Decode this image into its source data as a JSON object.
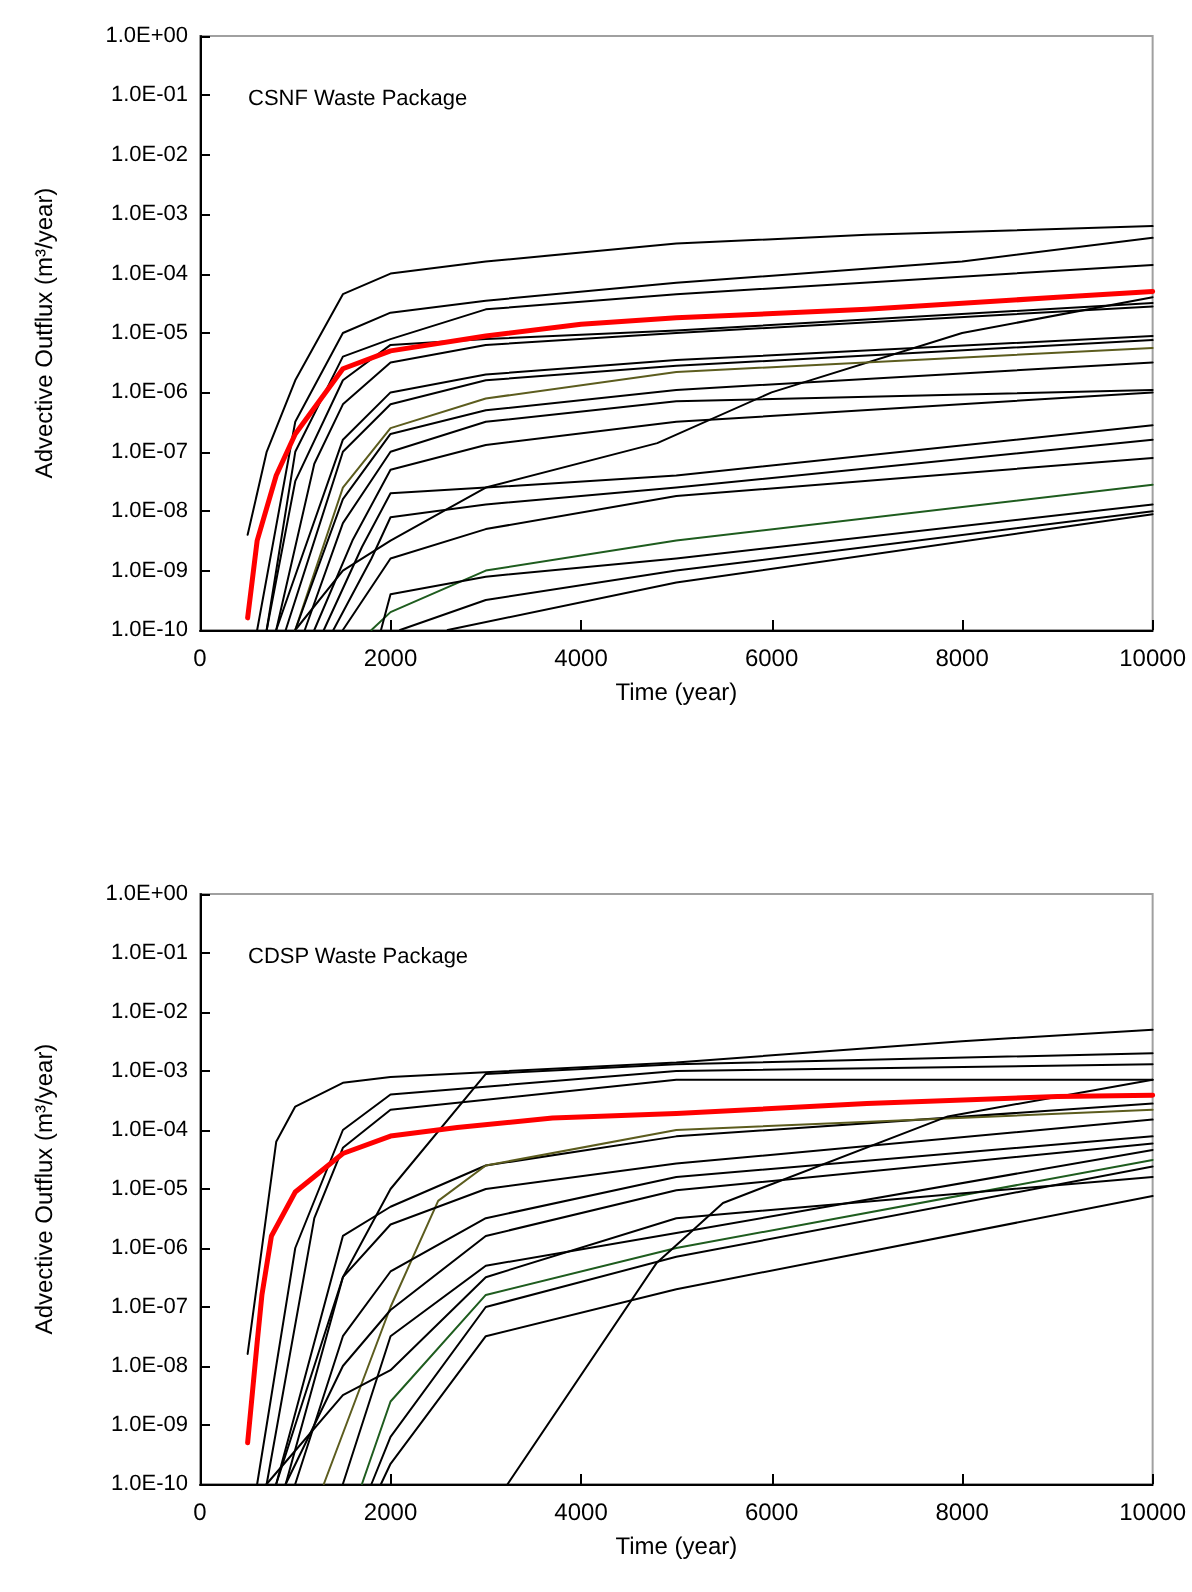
{
  "chart_data": [
    {
      "type": "line",
      "annotations": [
        "CSNF Waste Package"
      ],
      "xlabel": "Time (year)",
      "ylabel": "Advective Outflux (m³/year)",
      "log": "y",
      "marker": "none",
      "line_style": "solid",
      "grid": false,
      "xlim": [
        0,
        10000
      ],
      "xticks": [
        0,
        2000,
        4000,
        6000,
        8000,
        10000
      ],
      "ylim": [
        1e-10,
        1
      ],
      "yticks": [
        {
          "value": 1,
          "label": "1.0E+00"
        },
        {
          "value": 0.1,
          "label": "1.0E-01"
        },
        {
          "value": 0.01,
          "label": "1.0E-02"
        },
        {
          "value": 0.001,
          "label": "1.0E-03"
        },
        {
          "value": 0.0001,
          "label": "1.0E-04"
        },
        {
          "value": 1e-05,
          "label": "1.0E-05"
        },
        {
          "value": 1e-06,
          "label": "1.0E-06"
        },
        {
          "value": 1e-07,
          "label": "1.0E-07"
        },
        {
          "value": 1e-08,
          "label": "1.0E-08"
        },
        {
          "value": 1e-09,
          "label": "1.0E-09"
        },
        {
          "value": 1e-10,
          "label": "1.0E-10"
        }
      ],
      "series": [
        {
          "color": "#000000",
          "x": [
            500,
            700,
            1000,
            1500,
            2000,
            3000,
            5000,
            7000,
            10000
          ],
          "values": [
            4e-09,
            1e-07,
            1.6e-06,
            4.5e-05,
            0.0001,
            0.00016,
            0.00032,
            0.00045,
            0.00063
          ]
        },
        {
          "color": "#000000",
          "x": [
            600,
            1000,
            1500,
            2000,
            3000,
            5000,
            8000,
            10000
          ],
          "values": [
            1e-10,
            3.2e-07,
            1e-05,
            2.2e-05,
            3.5e-05,
            7e-05,
            0.00016,
            0.0004
          ]
        },
        {
          "color": "#000000",
          "x": [
            700,
            1000,
            1500,
            2000,
            3000,
            5000,
            10000
          ],
          "values": [
            1e-10,
            1e-07,
            4e-06,
            7.9e-06,
            2.5e-05,
            4.5e-05,
            0.00014
          ]
        },
        {
          "color": "#000000",
          "x": [
            700,
            1000,
            1500,
            2000,
            3000,
            5000,
            10000
          ],
          "values": [
            1e-10,
            3.2e-08,
            1.6e-06,
            6.3e-06,
            7.9e-06,
            1.1e-05,
            3.2e-05
          ]
        },
        {
          "color": "#000000",
          "x": [
            800,
            1200,
            1500,
            2000,
            3000,
            5000,
            10000
          ],
          "values": [
            1e-10,
            6.3e-08,
            6.3e-07,
            3.2e-06,
            6.3e-06,
            1e-05,
            2.8e-05
          ]
        },
        {
          "color": "#000000",
          "x": [
            1000,
            1500,
            2000,
            3000,
            4800,
            6000,
            8000,
            10000
          ],
          "values": [
            1e-10,
            1e-09,
            3.2e-09,
            2.5e-08,
            1.4e-07,
            1e-06,
            1e-05,
            4e-05
          ]
        },
        {
          "color": "#000000",
          "x": [
            800,
            1500,
            2000,
            3000,
            5000,
            10000
          ],
          "values": [
            1e-10,
            1.6e-07,
            1e-06,
            2e-06,
            3.5e-06,
            8.9e-06
          ]
        },
        {
          "color": "#000000",
          "x": [
            900,
            1500,
            2000,
            3000,
            5000,
            10000
          ],
          "values": [
            1e-10,
            1e-07,
            6.3e-07,
            1.6e-06,
            2.8e-06,
            7.6e-06
          ]
        },
        {
          "color": "#5c5c1e",
          "x": [
            1000,
            1500,
            2000,
            3000,
            5000,
            10000
          ],
          "values": [
            1e-10,
            2.5e-08,
            2.5e-07,
            7.9e-07,
            2.2e-06,
            5.6e-06
          ]
        },
        {
          "color": "#000000",
          "x": [
            1000,
            1500,
            2000,
            3000,
            5000,
            10000
          ],
          "values": [
            1e-10,
            1.6e-08,
            2e-07,
            5e-07,
            1.1e-06,
            3.2e-06
          ]
        },
        {
          "color": "#000000",
          "x": [
            1100,
            1500,
            2000,
            3000,
            5000,
            10000
          ],
          "values": [
            1e-10,
            6.3e-09,
            1e-07,
            3.2e-07,
            7.1e-07,
            1.1e-06
          ]
        },
        {
          "color": "#000000",
          "x": [
            1200,
            1600,
            2000,
            3000,
            5000,
            10000
          ],
          "values": [
            1e-10,
            3.2e-09,
            5e-08,
            1.3e-07,
            3.2e-07,
            1e-06
          ]
        },
        {
          "color": "#000000",
          "x": [
            1300,
            1700,
            2000,
            3000,
            5000,
            10000
          ],
          "values": [
            1e-10,
            2.5e-09,
            2e-08,
            2.5e-08,
            4e-08,
            2.8e-07
          ]
        },
        {
          "color": "#000000",
          "x": [
            1400,
            1800,
            2000,
            3000,
            5000,
            10000
          ],
          "values": [
            1e-10,
            1.6e-09,
            7.9e-09,
            1.3e-08,
            2.5e-08,
            1.6e-07
          ]
        },
        {
          "color": "#000000",
          "x": [
            1500,
            2000,
            3000,
            5000,
            10000
          ],
          "values": [
            1e-10,
            1.6e-09,
            5e-09,
            1.8e-08,
            7.9e-08
          ]
        },
        {
          "color": "#1e5c1e",
          "x": [
            1800,
            2000,
            3000,
            5000,
            10000
          ],
          "values": [
            1e-10,
            2e-10,
            1e-09,
            3.2e-09,
            2.8e-08
          ]
        },
        {
          "color": "#000000",
          "x": [
            1900,
            2000,
            3000,
            5000,
            10000
          ],
          "values": [
            1e-10,
            4e-10,
            7.9e-10,
            1.6e-09,
            1.3e-08
          ]
        },
        {
          "color": "#000000",
          "x": [
            2100,
            3000,
            5000,
            10000
          ],
          "values": [
            1e-10,
            3.2e-10,
            1e-09,
            1e-08
          ]
        },
        {
          "color": "#000000",
          "x": [
            2600,
            5000,
            10000
          ],
          "values": [
            1e-10,
            6.3e-10,
            8.9e-09
          ]
        },
        {
          "color": "#ff0000",
          "x": [
            500,
            600,
            800,
            1000,
            1500,
            2000,
            3000,
            4000,
            5000,
            7000,
            9000,
            10000
          ],
          "values": [
            1.6e-10,
            3.2e-09,
            4e-08,
            2e-07,
            2.5e-06,
            5e-06,
            8.9e-06,
            1.4e-05,
            1.8e-05,
            2.5e-05,
            4e-05,
            5e-05
          ]
        }
      ]
    },
    {
      "type": "line",
      "annotations": [
        "CDSP Waste Package"
      ],
      "xlabel": "Time (year)",
      "ylabel": "Advective Outflux (m³/year)",
      "log": "y",
      "marker": "none",
      "line_style": "solid",
      "grid": false,
      "xlim": [
        0,
        10000
      ],
      "xticks": [
        0,
        2000,
        4000,
        6000,
        8000,
        10000
      ],
      "ylim": [
        1e-10,
        1
      ],
      "yticks": [
        {
          "value": 1,
          "label": "1.0E+00"
        },
        {
          "value": 0.1,
          "label": "1.0E-01"
        },
        {
          "value": 0.01,
          "label": "1.0E-02"
        },
        {
          "value": 0.001,
          "label": "1.0E-03"
        },
        {
          "value": 0.0001,
          "label": "1.0E-04"
        },
        {
          "value": 1e-05,
          "label": "1.0E-05"
        },
        {
          "value": 1e-06,
          "label": "1.0E-06"
        },
        {
          "value": 1e-07,
          "label": "1.0E-07"
        },
        {
          "value": 1e-08,
          "label": "1.0E-08"
        },
        {
          "value": 1e-09,
          "label": "1.0E-09"
        },
        {
          "value": 1e-10,
          "label": "1.0E-10"
        }
      ],
      "series": [
        {
          "color": "#000000",
          "x": [
            500,
            800,
            1000,
            1500,
            2000,
            5000,
            8000,
            10000
          ],
          "values": [
            1.6e-08,
            6.3e-05,
            0.00025,
            0.00063,
            0.00079,
            0.0014,
            0.0032,
            0.005
          ]
        },
        {
          "color": "#000000",
          "x": [
            600,
            1000,
            1500,
            2000,
            5000,
            10000
          ],
          "values": [
            1e-10,
            1e-06,
            0.0001,
            0.0004,
            0.001,
            0.0013
          ]
        },
        {
          "color": "#000000",
          "x": [
            700,
            1200,
            1500,
            2000,
            5000,
            10000
          ],
          "values": [
            1e-10,
            3.2e-06,
            5e-05,
            0.00022,
            0.00071,
            0.00071
          ]
        },
        {
          "color": "#000000",
          "x": [
            900,
            1500,
            2000,
            3000,
            5000,
            10000
          ],
          "values": [
            1e-10,
            3.2e-07,
            1e-05,
            0.00089,
            0.0013,
            0.002
          ]
        },
        {
          "color": "#000000",
          "x": [
            800,
            1500,
            2000,
            3000,
            5000,
            10000
          ],
          "values": [
            1e-10,
            1.6e-06,
            5e-06,
            2.5e-05,
            7.8e-05,
            0.00028
          ]
        },
        {
          "color": "#5c5c1e",
          "x": [
            1300,
            2000,
            2500,
            3000,
            5000,
            10000
          ],
          "values": [
            1e-10,
            1e-07,
            6.3e-06,
            2.5e-05,
            0.0001,
            0.00022
          ]
        },
        {
          "color": "#000000",
          "x": [
            800,
            1500,
            2000,
            3000,
            5000,
            10000
          ],
          "values": [
            1e-10,
            3.2e-07,
            2.5e-06,
            1e-05,
            2.7e-05,
            0.00015
          ]
        },
        {
          "color": "#000000",
          "x": [
            1000,
            1500,
            2000,
            3000,
            5000,
            10000
          ],
          "values": [
            1e-10,
            3.2e-08,
            4e-07,
            3.2e-06,
            1.6e-05,
            7.8e-05
          ]
        },
        {
          "color": "#000000",
          "x": [
            900,
            1500,
            2000,
            3000,
            5000,
            10000
          ],
          "values": [
            1e-10,
            1e-08,
            8.9e-08,
            1.6e-06,
            9.5e-06,
            5.9e-05
          ]
        },
        {
          "color": "#000000",
          "x": [
            1500,
            2000,
            3000,
            5000,
            10000
          ],
          "values": [
            1e-10,
            3.2e-08,
            5e-07,
            1.8e-06,
            4.6e-05
          ]
        },
        {
          "color": "#1e5c1e",
          "x": [
            1700,
            2000,
            3000,
            5000,
            10000
          ],
          "values": [
            1e-10,
            2.5e-09,
            1.6e-07,
            1e-06,
            3.1e-05
          ]
        },
        {
          "color": "#000000",
          "x": [
            1800,
            2000,
            3000,
            5000,
            10000
          ],
          "values": [
            1e-10,
            6.3e-10,
            1e-07,
            7.1e-07,
            2.4e-05
          ]
        },
        {
          "color": "#000000",
          "x": [
            1900,
            2000,
            3000,
            5000,
            10000
          ],
          "values": [
            1e-10,
            2.2e-10,
            3.2e-08,
            2e-07,
            7.6e-06
          ]
        },
        {
          "color": "#000000",
          "x": [
            3230,
            4790,
            5490,
            7850,
            10000
          ],
          "values": [
            1e-10,
            5.5e-07,
            5.8e-06,
            0.00017,
            0.00071
          ]
        },
        {
          "color": "#000000",
          "x": [
            700,
            1500,
            2000,
            3000,
            5000,
            10000
          ],
          "values": [
            1e-10,
            3.2e-09,
            8.5e-09,
            3.2e-07,
            3.2e-06,
            1.6e-05
          ]
        },
        {
          "color": "#ff0000",
          "x": [
            500,
            600,
            650,
            750,
            1000,
            1500,
            2000,
            2700,
            3700,
            5000,
            7000,
            9000,
            10000
          ],
          "values": [
            5e-10,
            2.5e-08,
            1.6e-07,
            1.6e-06,
            8.9e-06,
            4e-05,
            7.9e-05,
            0.00011,
            0.00016,
            0.00019,
            0.00028,
            0.00037,
            0.00039
          ]
        }
      ]
    }
  ]
}
